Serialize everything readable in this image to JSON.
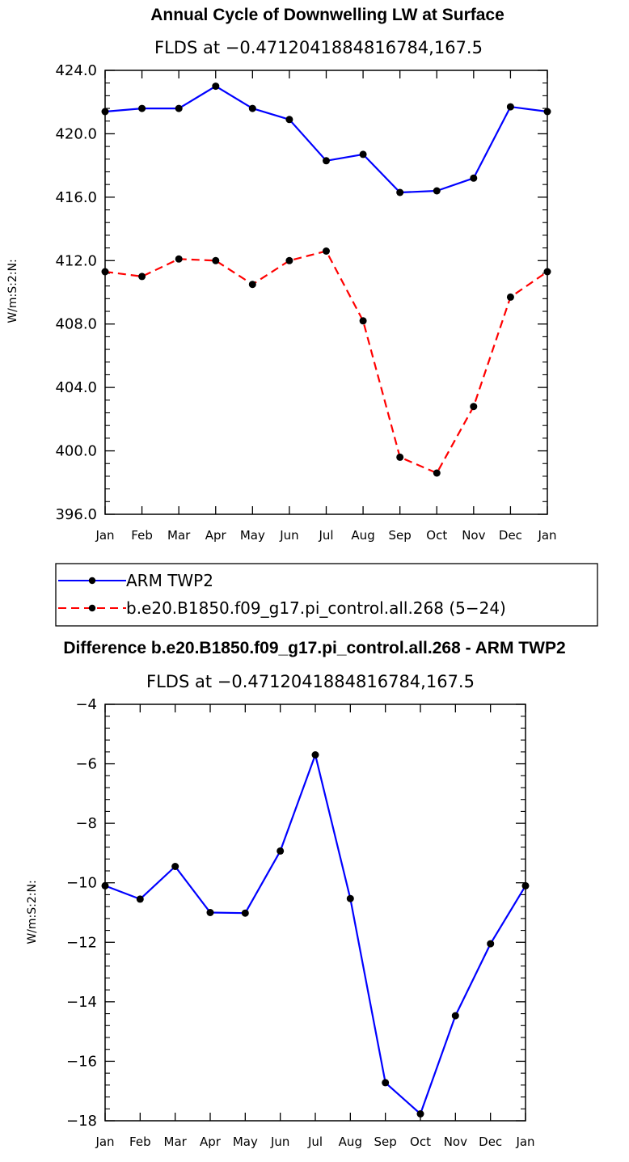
{
  "chart_data": [
    {
      "type": "line",
      "title": "Annual Cycle of Downwelling LW at Surface",
      "subtitle": "FLDS at −0.4712041884816784,167.5",
      "ylabel": "W/m:S:2:N:",
      "ylim": [
        396,
        424
      ],
      "yticks": [
        "396.0",
        "400.0",
        "404.0",
        "408.0",
        "412.0",
        "416.0",
        "420.0",
        "424.0"
      ],
      "categories": [
        "Jan",
        "Feb",
        "Mar",
        "Apr",
        "May",
        "Jun",
        "Jul",
        "Aug",
        "Sep",
        "Oct",
        "Nov",
        "Dec",
        "Jan"
      ],
      "series": [
        {
          "name": "ARM TWP2",
          "color": "#0000ff",
          "dash": "solid",
          "values": [
            421.4,
            421.6,
            421.6,
            423.0,
            421.6,
            420.9,
            418.3,
            418.7,
            416.3,
            416.4,
            417.2,
            421.7,
            421.4
          ]
        },
        {
          "name": "b.e20.B1850.f09_g17.pi_control.all.268 (5−24)",
          "color": "#ff0000",
          "dash": "dashed",
          "values": [
            411.3,
            411.0,
            412.1,
            412.0,
            410.5,
            412.0,
            412.6,
            408.2,
            399.6,
            398.6,
            402.8,
            409.7,
            411.3
          ]
        }
      ]
    },
    {
      "type": "line",
      "title": "Difference b.e20.B1850.f09_g17.pi_control.all.268 - ARM TWP2",
      "subtitle": "FLDS at −0.4712041884816784,167.5",
      "ylabel": "W/m:S:2:N:",
      "ylim": [
        -18,
        -4
      ],
      "yticks": [
        "−18",
        "−16",
        "−14",
        "−12",
        "−10",
        "−8",
        "−6",
        "−4"
      ],
      "categories": [
        "Jan",
        "Feb",
        "Mar",
        "Apr",
        "May",
        "Jun",
        "Jul",
        "Aug",
        "Sep",
        "Oct",
        "Nov",
        "Dec",
        "Jan"
      ],
      "series": [
        {
          "color": "#0000ff",
          "dash": "solid",
          "values": [
            -10.1,
            -10.55,
            -9.45,
            -11.0,
            -11.02,
            -8.93,
            -5.7,
            -10.53,
            -16.72,
            -17.77,
            -14.47,
            -12.05,
            -10.1
          ]
        }
      ]
    }
  ]
}
